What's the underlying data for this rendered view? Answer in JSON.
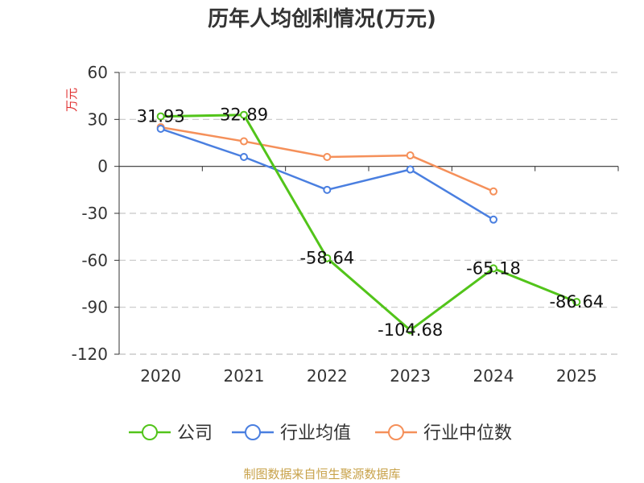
{
  "chart_data": {
    "type": "line",
    "title": "历年人均创利情况(万元)",
    "ylabel": "万元",
    "categories": [
      "2020",
      "2021",
      "2022",
      "2023",
      "2024",
      "2025"
    ],
    "ylim": [
      -120,
      60
    ],
    "yticks": [
      60,
      30,
      0,
      -30,
      -60,
      -90,
      -120
    ],
    "grid": true,
    "legend_position": "bottom",
    "series": [
      {
        "name": "公司",
        "color": "#52c41a",
        "values": [
          31.93,
          32.89,
          -58.64,
          -104.68,
          -65.18,
          -86.64
        ],
        "labels": [
          "31.93",
          "32.89",
          "-58.64",
          "-104.68",
          "-65.18",
          "-86.64"
        ]
      },
      {
        "name": "行业均值",
        "color": "#4a7fe0",
        "values": [
          24,
          6,
          -15,
          -2,
          -34,
          null
        ]
      },
      {
        "name": "行业中位数",
        "color": "#f5905a",
        "values": [
          25,
          16,
          6,
          7,
          -16,
          null
        ]
      }
    ]
  },
  "source": "制图数据来自恒生聚源数据库"
}
